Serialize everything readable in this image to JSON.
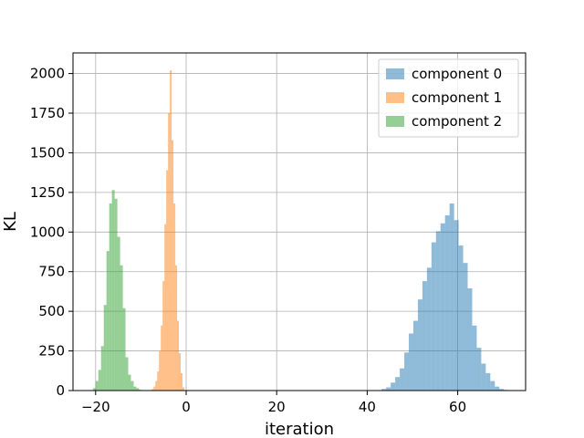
{
  "chart_data": {
    "type": "histogram",
    "title": "",
    "xlabel": "iteration",
    "ylabel": "KL",
    "xlim": [
      -25,
      75
    ],
    "ylim": [
      0,
      2130
    ],
    "grid": true,
    "legend_position": "top-right",
    "x_ticks": [
      -20,
      0,
      20,
      40,
      60
    ],
    "y_ticks": [
      0,
      250,
      500,
      750,
      1000,
      1250,
      1500,
      1750,
      2000
    ],
    "alpha": 0.5,
    "series": [
      {
        "name": "component 0",
        "color": "#1f77b4",
        "bins": [
          {
            "x0": 43.2,
            "x1": 44.2,
            "count": 10
          },
          {
            "x0": 44.2,
            "x1": 45.2,
            "count": 20
          },
          {
            "x0": 45.2,
            "x1": 46.2,
            "count": 50
          },
          {
            "x0": 46.2,
            "x1": 47.2,
            "count": 85
          },
          {
            "x0": 47.2,
            "x1": 48.2,
            "count": 140
          },
          {
            "x0": 48.2,
            "x1": 49.2,
            "count": 240
          },
          {
            "x0": 49.2,
            "x1": 50.2,
            "count": 360
          },
          {
            "x0": 50.2,
            "x1": 51.2,
            "count": 440
          },
          {
            "x0": 51.2,
            "x1": 52.2,
            "count": 575
          },
          {
            "x0": 52.2,
            "x1": 53.2,
            "count": 690
          },
          {
            "x0": 53.2,
            "x1": 54.2,
            "count": 775
          },
          {
            "x0": 54.2,
            "x1": 55.2,
            "count": 935
          },
          {
            "x0": 55.2,
            "x1": 56.2,
            "count": 1005
          },
          {
            "x0": 56.2,
            "x1": 57.2,
            "count": 1055
          },
          {
            "x0": 57.2,
            "x1": 58.2,
            "count": 1105
          },
          {
            "x0": 58.2,
            "x1": 59.2,
            "count": 1180
          },
          {
            "x0": 59.2,
            "x1": 60.2,
            "count": 1075
          },
          {
            "x0": 60.2,
            "x1": 61.2,
            "count": 915
          },
          {
            "x0": 61.2,
            "x1": 62.2,
            "count": 805
          },
          {
            "x0": 62.2,
            "x1": 63.2,
            "count": 645
          },
          {
            "x0": 63.2,
            "x1": 64.2,
            "count": 410
          },
          {
            "x0": 64.2,
            "x1": 65.2,
            "count": 270
          },
          {
            "x0": 65.2,
            "x1": 66.2,
            "count": 170
          },
          {
            "x0": 66.2,
            "x1": 67.2,
            "count": 110
          },
          {
            "x0": 67.2,
            "x1": 68.2,
            "count": 60
          },
          {
            "x0": 68.2,
            "x1": 69.2,
            "count": 25
          },
          {
            "x0": 69.2,
            "x1": 70.2,
            "count": 10
          },
          {
            "x0": 70.2,
            "x1": 71.2,
            "count": 4
          }
        ]
      },
      {
        "name": "component 1",
        "color": "#ff7f0e",
        "bins": [
          {
            "x0": -7.6,
            "x1": -7.2,
            "count": 10
          },
          {
            "x0": -7.2,
            "x1": -6.8,
            "count": 25
          },
          {
            "x0": -6.8,
            "x1": -6.4,
            "count": 60
          },
          {
            "x0": -6.4,
            "x1": -6.0,
            "count": 120
          },
          {
            "x0": -6.0,
            "x1": -5.6,
            "count": 250
          },
          {
            "x0": -5.6,
            "x1": -5.2,
            "count": 410
          },
          {
            "x0": -5.2,
            "x1": -4.8,
            "count": 690
          },
          {
            "x0": -4.8,
            "x1": -4.4,
            "count": 1050
          },
          {
            "x0": -4.4,
            "x1": -4.0,
            "count": 1390
          },
          {
            "x0": -4.0,
            "x1": -3.6,
            "count": 1750
          },
          {
            "x0": -3.6,
            "x1": -3.2,
            "count": 2020
          },
          {
            "x0": -3.2,
            "x1": -2.8,
            "count": 1580
          },
          {
            "x0": -2.8,
            "x1": -2.4,
            "count": 1180
          },
          {
            "x0": -2.4,
            "x1": -2.0,
            "count": 790
          },
          {
            "x0": -2.0,
            "x1": -1.6,
            "count": 440
          },
          {
            "x0": -1.6,
            "x1": -1.2,
            "count": 235
          },
          {
            "x0": -1.2,
            "x1": -0.8,
            "count": 110
          },
          {
            "x0": -0.8,
            "x1": -0.4,
            "count": 20
          }
        ]
      },
      {
        "name": "component 2",
        "color": "#2ca02c",
        "bins": [
          {
            "x0": -20.6,
            "x1": -20.0,
            "count": 15
          },
          {
            "x0": -20.0,
            "x1": -19.4,
            "count": 60
          },
          {
            "x0": -19.4,
            "x1": -18.8,
            "count": 130
          },
          {
            "x0": -18.8,
            "x1": -18.2,
            "count": 280
          },
          {
            "x0": -18.2,
            "x1": -17.6,
            "count": 540
          },
          {
            "x0": -17.6,
            "x1": -17.0,
            "count": 880
          },
          {
            "x0": -17.0,
            "x1": -16.4,
            "count": 1180
          },
          {
            "x0": -16.4,
            "x1": -15.8,
            "count": 1265
          },
          {
            "x0": -15.8,
            "x1": -15.2,
            "count": 1210
          },
          {
            "x0": -15.2,
            "x1": -14.6,
            "count": 970
          },
          {
            "x0": -14.6,
            "x1": -14.0,
            "count": 790
          },
          {
            "x0": -14.0,
            "x1": -13.4,
            "count": 520
          },
          {
            "x0": -13.4,
            "x1": -12.8,
            "count": 210
          },
          {
            "x0": -12.8,
            "x1": -12.2,
            "count": 100
          },
          {
            "x0": -12.2,
            "x1": -11.6,
            "count": 60
          },
          {
            "x0": -11.6,
            "x1": -11.0,
            "count": 25
          },
          {
            "x0": -11.0,
            "x1": -10.4,
            "count": 15
          },
          {
            "x0": -10.4,
            "x1": -9.8,
            "count": 5
          }
        ]
      }
    ]
  }
}
